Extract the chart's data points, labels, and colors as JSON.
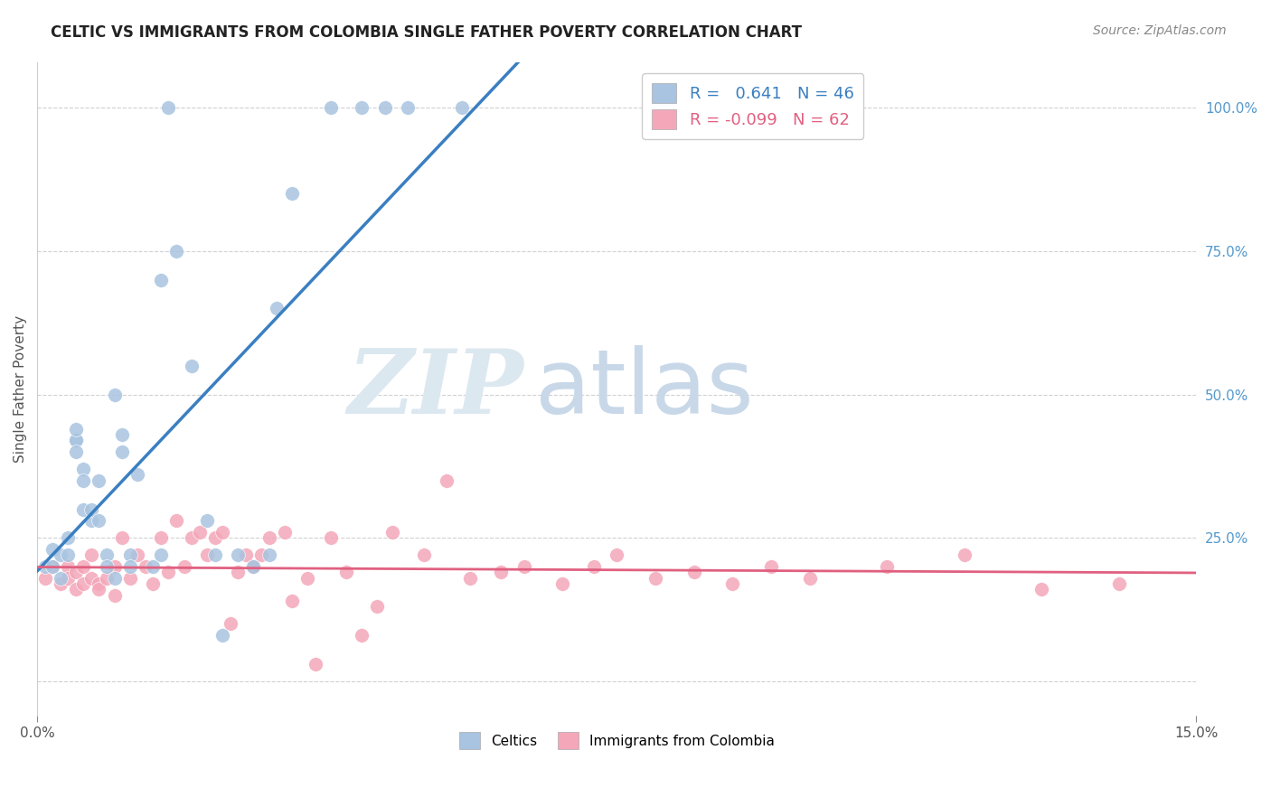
{
  "title": "CELTIC VS IMMIGRANTS FROM COLOMBIA SINGLE FATHER POVERTY CORRELATION CHART",
  "source": "Source: ZipAtlas.com",
  "ylabel": "Single Father Poverty",
  "celtics_R": 0.641,
  "celtics_N": 46,
  "colombia_R": -0.099,
  "colombia_N": 62,
  "celtics_color": "#a8c4e0",
  "colombia_color": "#f4a7b9",
  "celtics_line_color": "#3a7fc1",
  "colombia_line_color": "#e06080",
  "background_color": "#ffffff",
  "grid_color": "#cccccc",
  "watermark_zip": "ZIP",
  "watermark_atlas": "atlas",
  "watermark_color_zip": "#dce8f0",
  "watermark_color_atlas": "#c8d8e8",
  "title_color": "#222222",
  "source_color": "#888888",
  "right_tick_color": "#5599cc",
  "xmin": 0.0,
  "xmax": 0.15,
  "ymin": -0.06,
  "ymax": 1.08,
  "celtics_x": [
    0.001,
    0.002,
    0.002,
    0.003,
    0.003,
    0.004,
    0.004,
    0.005,
    0.005,
    0.005,
    0.005,
    0.006,
    0.006,
    0.006,
    0.007,
    0.007,
    0.008,
    0.008,
    0.009,
    0.009,
    0.01,
    0.01,
    0.011,
    0.011,
    0.012,
    0.012,
    0.013,
    0.015,
    0.016,
    0.016,
    0.017,
    0.018,
    0.02,
    0.022,
    0.023,
    0.024,
    0.026,
    0.028,
    0.03,
    0.031,
    0.033,
    0.038,
    0.042,
    0.045,
    0.048,
    0.055
  ],
  "celtics_y": [
    0.2,
    0.2,
    0.23,
    0.18,
    0.22,
    0.25,
    0.22,
    0.42,
    0.42,
    0.44,
    0.4,
    0.37,
    0.35,
    0.3,
    0.28,
    0.3,
    0.35,
    0.28,
    0.22,
    0.2,
    0.18,
    0.5,
    0.43,
    0.4,
    0.22,
    0.2,
    0.36,
    0.2,
    0.22,
    0.7,
    1.0,
    0.75,
    0.55,
    0.28,
    0.22,
    0.08,
    0.22,
    0.2,
    0.22,
    0.65,
    0.85,
    1.0,
    1.0,
    1.0,
    1.0,
    1.0
  ],
  "colombia_x": [
    0.001,
    0.002,
    0.003,
    0.004,
    0.004,
    0.005,
    0.005,
    0.006,
    0.006,
    0.007,
    0.007,
    0.008,
    0.008,
    0.009,
    0.01,
    0.01,
    0.011,
    0.012,
    0.013,
    0.014,
    0.015,
    0.016,
    0.017,
    0.018,
    0.019,
    0.02,
    0.021,
    0.022,
    0.023,
    0.024,
    0.025,
    0.026,
    0.027,
    0.028,
    0.029,
    0.03,
    0.032,
    0.033,
    0.035,
    0.036,
    0.038,
    0.04,
    0.042,
    0.044,
    0.046,
    0.05,
    0.053,
    0.056,
    0.06,
    0.063,
    0.068,
    0.072,
    0.075,
    0.08,
    0.085,
    0.09,
    0.095,
    0.1,
    0.11,
    0.12,
    0.13,
    0.14
  ],
  "colombia_y": [
    0.18,
    0.2,
    0.17,
    0.2,
    0.18,
    0.16,
    0.19,
    0.17,
    0.2,
    0.22,
    0.18,
    0.17,
    0.16,
    0.18,
    0.2,
    0.15,
    0.25,
    0.18,
    0.22,
    0.2,
    0.17,
    0.25,
    0.19,
    0.28,
    0.2,
    0.25,
    0.26,
    0.22,
    0.25,
    0.26,
    0.1,
    0.19,
    0.22,
    0.2,
    0.22,
    0.25,
    0.26,
    0.14,
    0.18,
    0.03,
    0.25,
    0.19,
    0.08,
    0.13,
    0.26,
    0.22,
    0.35,
    0.18,
    0.19,
    0.2,
    0.17,
    0.2,
    0.22,
    0.18,
    0.19,
    0.17,
    0.2,
    0.18,
    0.2,
    0.22,
    0.16,
    0.17
  ]
}
